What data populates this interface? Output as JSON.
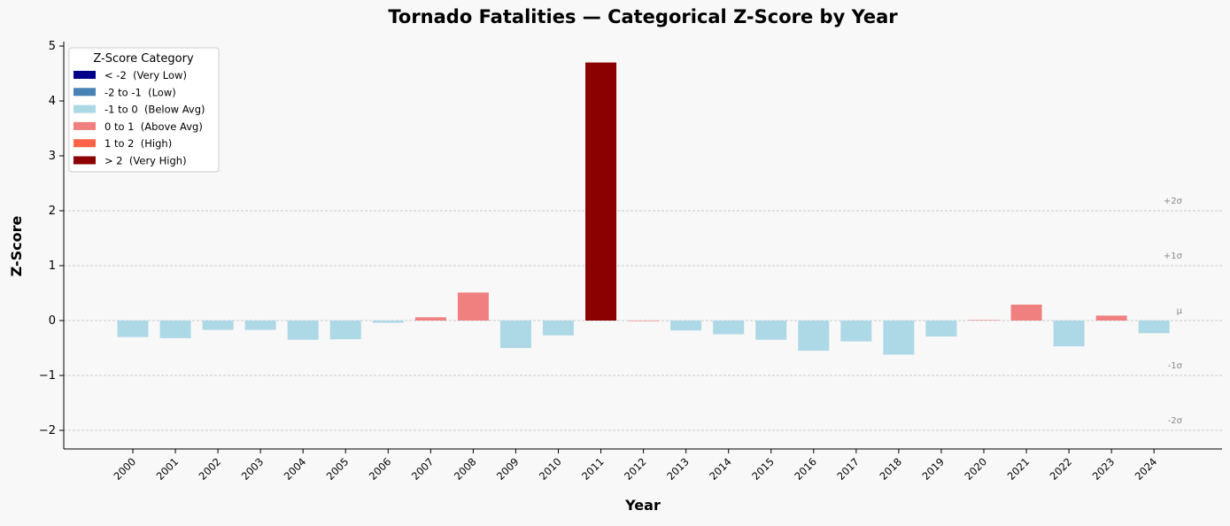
{
  "chart_data": {
    "type": "bar",
    "title": "Tornado Fatalities — Categorical Z-Score by Year",
    "xlabel": "Year",
    "ylabel": "Z-Score",
    "ylim": [
      -2.35,
      5.05
    ],
    "yticks": [
      -2,
      -1,
      0,
      1,
      2,
      3,
      4,
      5
    ],
    "ytick_labels": [
      "−2",
      "−1",
      "0",
      "1",
      "2",
      "3",
      "4",
      "5"
    ],
    "grid": "horizontal reference lines only",
    "categories": [
      "2000",
      "2001",
      "2002",
      "2003",
      "2004",
      "2005",
      "2006",
      "2007",
      "2008",
      "2009",
      "2010",
      "2011",
      "2012",
      "2013",
      "2014",
      "2015",
      "2016",
      "2017",
      "2018",
      "2019",
      "2020",
      "2021",
      "2022",
      "2023",
      "2024"
    ],
    "values": [
      -0.3,
      -0.32,
      -0.17,
      -0.17,
      -0.35,
      -0.34,
      -0.04,
      0.06,
      0.51,
      -0.5,
      -0.27,
      4.7,
      0.0,
      -0.18,
      -0.25,
      -0.35,
      -0.55,
      -0.38,
      -0.62,
      -0.29,
      0.01,
      0.29,
      -0.47,
      0.09,
      -0.23
    ],
    "reference_lines": [
      {
        "value": 2,
        "label": "+2σ"
      },
      {
        "value": 1,
        "label": "+1σ"
      },
      {
        "value": 0,
        "label": "μ"
      },
      {
        "value": -1,
        "label": "-1σ"
      },
      {
        "value": -2,
        "label": "-2σ"
      }
    ],
    "legend": {
      "title": "Z-Score Category",
      "position": "top-left",
      "entries": [
        {
          "label": "< -2  (Very Low)",
          "color": "#00008b",
          "min": -100,
          "max": -2
        },
        {
          "label": "-2 to -1  (Low)",
          "color": "#4682b4",
          "min": -2,
          "max": -1
        },
        {
          "label": "-1 to 0  (Below Avg)",
          "color": "#add8e6",
          "min": -1,
          "max": 0
        },
        {
          "label": "0 to 1  (Above Avg)",
          "color": "#f08080",
          "min": 0,
          "max": 1
        },
        {
          "label": "1 to 2  (High)",
          "color": "#ff6347",
          "min": 1,
          "max": 2
        },
        {
          "label": "> 2  (Very High)",
          "color": "#8b0000",
          "min": 2,
          "max": 100
        }
      ]
    }
  }
}
